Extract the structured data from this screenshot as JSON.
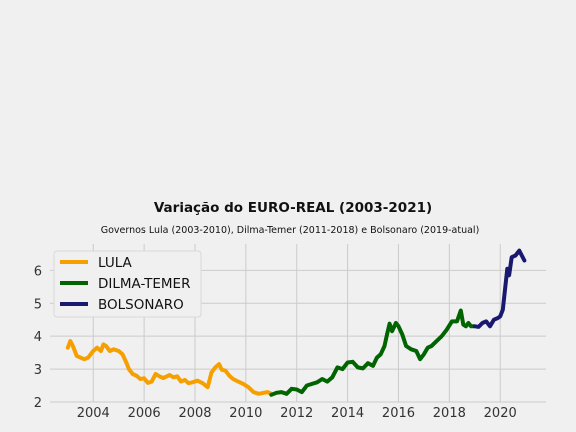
{
  "chart_data": {
    "type": "line",
    "title": "Variação do EURO-REAL (2003-2021)",
    "subtitle": "Governos Lula (2003-2010), Dilma-Temer (2011-2018) e Bolsonaro (2019-atual)",
    "xlabel": "",
    "ylabel": "",
    "xlim": [
      2002.3,
      2021.8
    ],
    "ylim": [
      2.0,
      6.8
    ],
    "x_ticks": [
      2004,
      2006,
      2008,
      2010,
      2012,
      2014,
      2016,
      2018,
      2020
    ],
    "y_ticks": [
      2,
      3,
      4,
      5,
      6
    ],
    "grid": true,
    "legend_position": "center-left",
    "series": [
      {
        "name": "LULA",
        "color": "#f5a000",
        "x": [
          2003.0,
          2003.1,
          2003.2,
          2003.35,
          2003.5,
          2003.65,
          2003.8,
          2004.0,
          2004.15,
          2004.3,
          2004.4,
          2004.5,
          2004.65,
          2004.8,
          2005.0,
          2005.15,
          2005.3,
          2005.4,
          2005.55,
          2005.7,
          2005.85,
          2006.0,
          2006.15,
          2006.3,
          2006.45,
          2006.6,
          2006.75,
          2006.9,
          2007.0,
          2007.15,
          2007.3,
          2007.45,
          2007.6,
          2007.75,
          2007.9,
          2008.1,
          2008.3,
          2008.5,
          2008.65,
          2008.8,
          2008.95,
          2009.05,
          2009.2,
          2009.35,
          2009.5,
          2009.7,
          2009.9,
          2010.1,
          2010.3,
          2010.5,
          2010.7,
          2010.85,
          2010.95
        ],
        "y": [
          3.65,
          3.85,
          3.7,
          3.4,
          3.35,
          3.3,
          3.35,
          3.55,
          3.65,
          3.55,
          3.75,
          3.7,
          3.55,
          3.6,
          3.55,
          3.45,
          3.2,
          3.0,
          2.85,
          2.8,
          2.7,
          2.72,
          2.58,
          2.62,
          2.85,
          2.78,
          2.73,
          2.78,
          2.82,
          2.75,
          2.78,
          2.62,
          2.67,
          2.57,
          2.6,
          2.65,
          2.57,
          2.45,
          2.9,
          3.05,
          3.15,
          2.98,
          2.95,
          2.8,
          2.7,
          2.62,
          2.55,
          2.45,
          2.3,
          2.25,
          2.28,
          2.3,
          2.27
        ]
      },
      {
        "name": "DILMA-TEMER",
        "color": "#006400",
        "x": [
          2011.0,
          2011.2,
          2011.4,
          2011.6,
          2011.8,
          2012.0,
          2012.2,
          2012.4,
          2012.6,
          2012.8,
          2013.0,
          2013.2,
          2013.4,
          2013.6,
          2013.8,
          2014.0,
          2014.2,
          2014.4,
          2014.6,
          2014.8,
          2015.0,
          2015.15,
          2015.3,
          2015.45,
          2015.55,
          2015.65,
          2015.75,
          2015.9,
          2016.0,
          2016.15,
          2016.3,
          2016.5,
          2016.7,
          2016.85,
          2017.0,
          2017.15,
          2017.3,
          2017.5,
          2017.7,
          2017.9,
          2018.1,
          2018.3,
          2018.45,
          2018.55,
          2018.65,
          2018.75,
          2018.85,
          2018.95
        ],
        "y": [
          2.22,
          2.28,
          2.3,
          2.25,
          2.4,
          2.38,
          2.3,
          2.5,
          2.55,
          2.6,
          2.7,
          2.62,
          2.75,
          3.05,
          3.0,
          3.2,
          3.22,
          3.05,
          3.02,
          3.18,
          3.1,
          3.35,
          3.45,
          3.7,
          4.05,
          4.38,
          4.15,
          4.4,
          4.3,
          4.05,
          3.7,
          3.6,
          3.55,
          3.3,
          3.45,
          3.65,
          3.7,
          3.85,
          4.0,
          4.2,
          4.45,
          4.45,
          4.78,
          4.35,
          4.3,
          4.4,
          4.3,
          4.3
        ]
      },
      {
        "name": "BOLSONARO",
        "color": "#191970",
        "x": [
          2019.0,
          2019.15,
          2019.3,
          2019.45,
          2019.6,
          2019.75,
          2019.9,
          2020.0,
          2020.1,
          2020.2,
          2020.28,
          2020.35,
          2020.45,
          2020.6,
          2020.75,
          2020.85,
          2020.95
        ],
        "y": [
          4.3,
          4.28,
          4.4,
          4.45,
          4.3,
          4.5,
          4.55,
          4.6,
          4.8,
          5.5,
          6.05,
          5.85,
          6.4,
          6.45,
          6.6,
          6.45,
          6.3
        ]
      }
    ]
  }
}
